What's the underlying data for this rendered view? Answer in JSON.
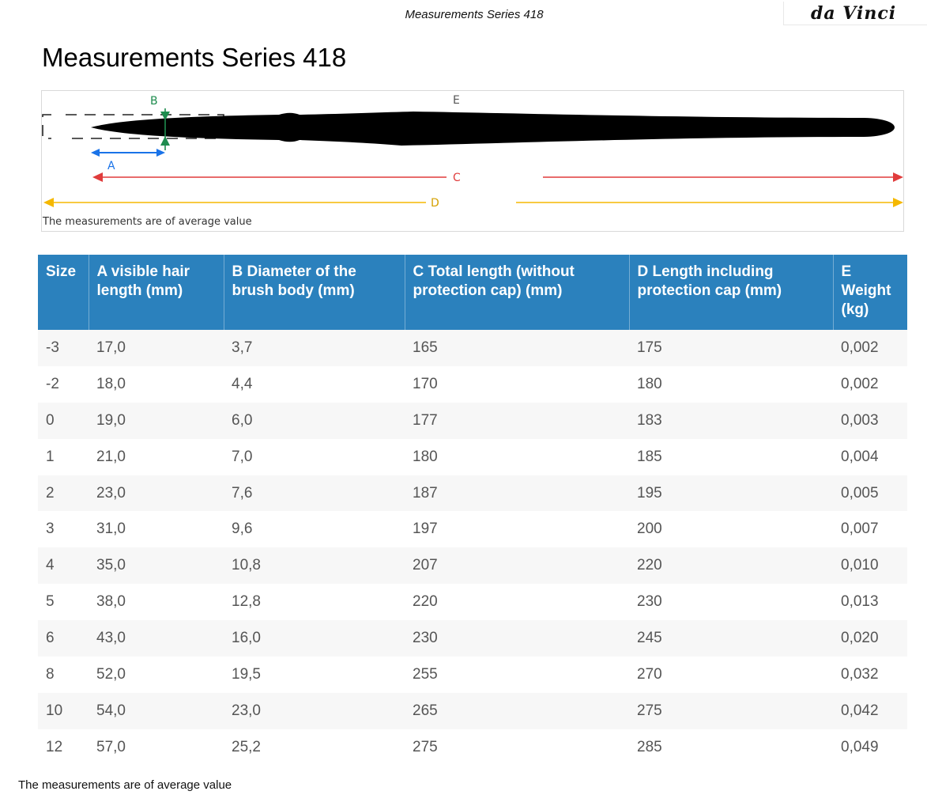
{
  "header": {
    "title": "Measurements Series 418"
  },
  "logo": {
    "text": "da Vinci"
  },
  "page_title": "Measurements Series 418",
  "diagram": {
    "labels": {
      "a": "A",
      "b": "B",
      "c": "C",
      "d": "D",
      "e": "E"
    },
    "note": "The measurements are of average value",
    "colors": {
      "a": "#1a73e8",
      "b": "#1e8c4e",
      "c": "#e03c3c",
      "d": "#f5b800",
      "e": "#555555"
    }
  },
  "table": {
    "columns": [
      "Size",
      "A visible hair length (mm)",
      "B Diameter of the brush body (mm)",
      "C Total length (without protection cap) (mm)",
      "D Length including protection cap (mm)",
      "E Weight (kg)"
    ],
    "rows": [
      [
        "-3",
        "17,0",
        "3,7",
        "165",
        "175",
        "0,002"
      ],
      [
        "-2",
        "18,0",
        "4,4",
        "170",
        "180",
        "0,002"
      ],
      [
        "0",
        "19,0",
        "6,0",
        "177",
        "183",
        "0,003"
      ],
      [
        "1",
        "21,0",
        "7,0",
        "180",
        "185",
        "0,004"
      ],
      [
        "2",
        "23,0",
        "7,6",
        "187",
        "195",
        "0,005"
      ],
      [
        "3",
        "31,0",
        "9,6",
        "197",
        "200",
        "0,007"
      ],
      [
        "4",
        "35,0",
        "10,8",
        "207",
        "220",
        "0,010"
      ],
      [
        "5",
        "38,0",
        "12,8",
        "220",
        "230",
        "0,013"
      ],
      [
        "6",
        "43,0",
        "16,0",
        "230",
        "245",
        "0,020"
      ],
      [
        "8",
        "52,0",
        "19,5",
        "255",
        "270",
        "0,032"
      ],
      [
        "10",
        "54,0",
        "23,0",
        "265",
        "275",
        "0,042"
      ],
      [
        "12",
        "57,0",
        "25,2",
        "275",
        "285",
        "0,049"
      ]
    ],
    "header_color": "#2b81bd"
  },
  "footer_note": "The measurements are of average value"
}
